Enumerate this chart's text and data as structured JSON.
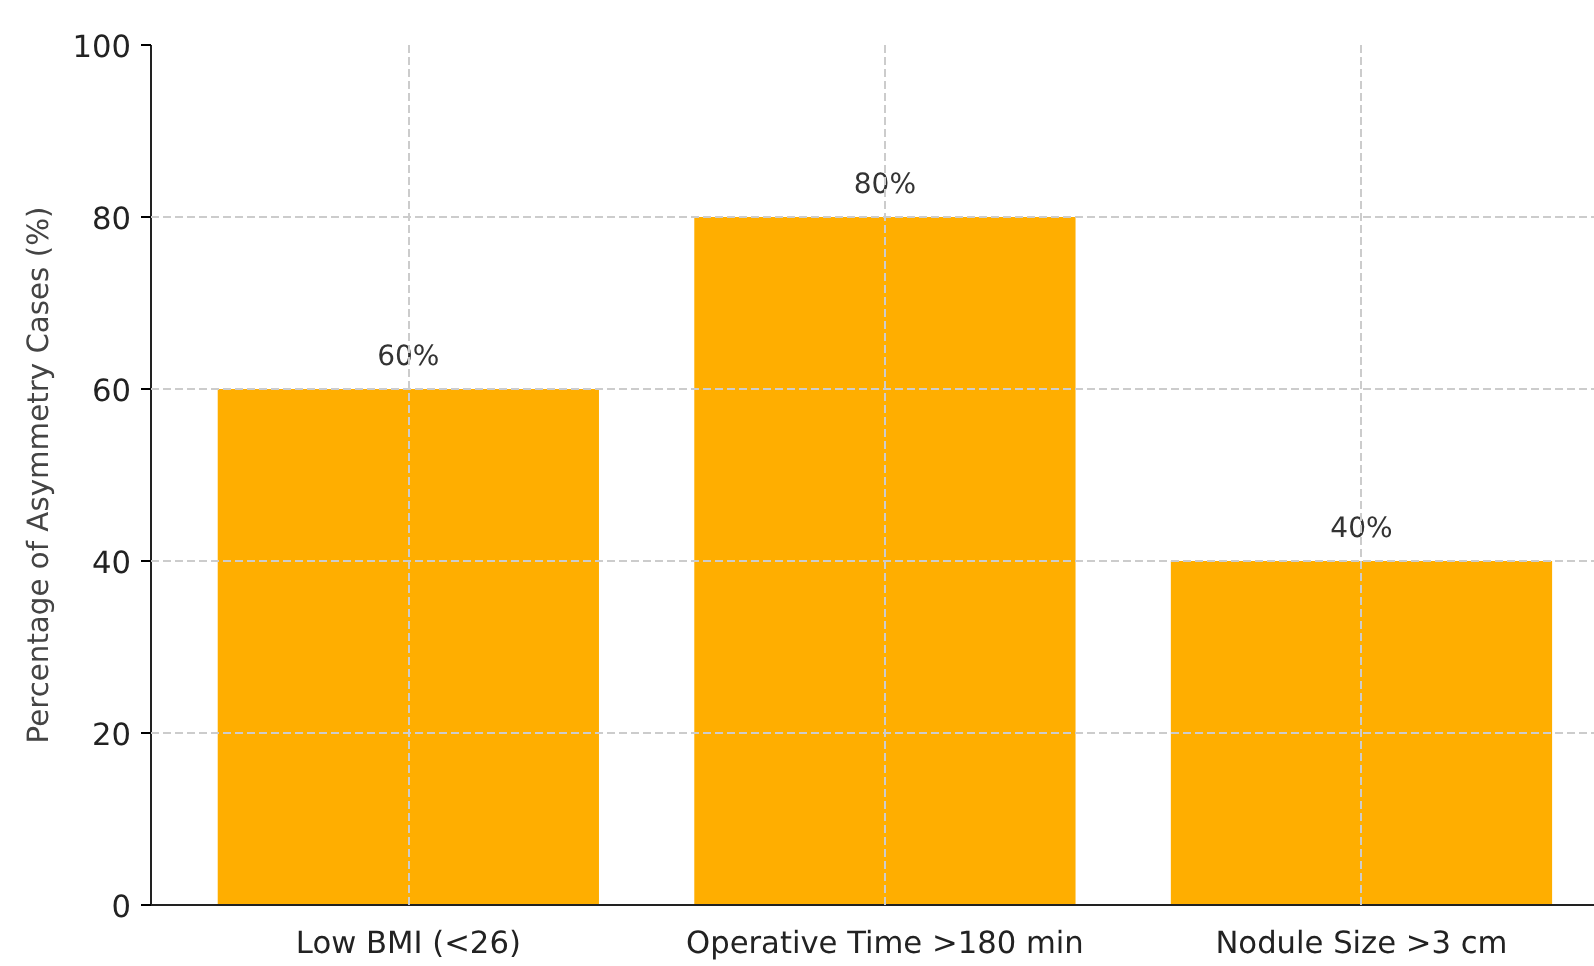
{
  "chart_data": {
    "type": "bar",
    "ylabel": "Percentage of Asymmetry Cases (%)",
    "categories": [
      "Low BMI (<26)",
      "Operative Time >180 min",
      "Nodule Size >3 cm"
    ],
    "values": [
      60,
      80,
      40
    ],
    "color": "#ffae00",
    "value_labels": [
      "60%",
      "80%",
      "40%"
    ],
    "ylim": [
      0,
      100
    ],
    "yticks": [
      0,
      20,
      40,
      60,
      80,
      100
    ],
    "grid": true
  }
}
